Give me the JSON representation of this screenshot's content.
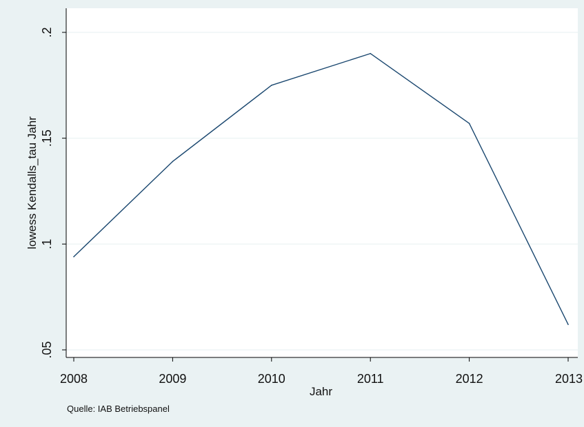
{
  "colors": {
    "outer_background": "#eaf2f3",
    "plot_background": "#ffffff",
    "line": "#1a476f",
    "grid": "#eaf2f3",
    "axis": "#000000"
  },
  "chart_data": {
    "type": "line",
    "x": [
      2008,
      2009,
      2010,
      2011,
      2012,
      2013
    ],
    "series": [
      {
        "values": [
          0.094,
          0.139,
          0.175,
          0.19,
          0.157,
          0.062
        ]
      }
    ],
    "xlabel": "Jahr",
    "ylabel": "lowess Kendalls_tau Jahr",
    "xticks": [
      2008,
      2009,
      2010,
      2011,
      2012,
      2013
    ],
    "xtick_labels": [
      "2008",
      "2009",
      "2010",
      "2011",
      "2012",
      "2013"
    ],
    "yticks": [
      0.05,
      0.1,
      0.15,
      0.2
    ],
    "ytick_labels": [
      ".05",
      ".1",
      ".15",
      ".2"
    ],
    "xlim": [
      2008,
      2013
    ],
    "ylim": [
      0.05,
      0.2
    ],
    "grid": true,
    "note": "Quelle: IAB Betriebspanel"
  }
}
